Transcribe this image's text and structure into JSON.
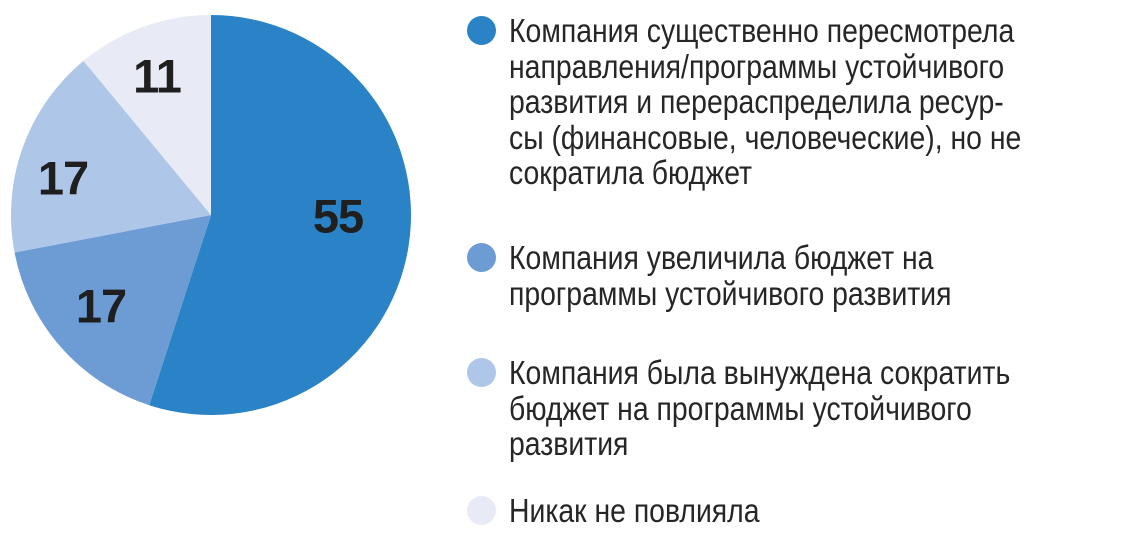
{
  "chart_data": {
    "type": "pie",
    "title": "",
    "unit": "%",
    "direction": "clockwise",
    "start_angle": "12-oclock",
    "legend_position": "right",
    "background": "#FFFFFF",
    "value_label_color": "#1F1F1F",
    "legend_text_color": "#262626",
    "slices": [
      {
        "value": 55,
        "label": "55",
        "color": "#2A83C6",
        "legend": "Компания существенно пересмотрела\nнаправления/программы устойчивого\nразвития и перераспределила ресур-\nсы (финансовые, человеческие), но не\nсократила бюджет"
      },
      {
        "value": 17,
        "label": "17",
        "color": "#6D9CD4",
        "legend": "Компания увеличила бюджет на\nпрограммы устойчивого развития"
      },
      {
        "value": 17,
        "label": "17",
        "color": "#AEC6E8",
        "legend": "Компания была вынуждена сократить\nбюджет на программы устойчивого\nразвития"
      },
      {
        "value": 11,
        "label": "11",
        "color": "#E8EBF5",
        "legend": "Никак не повлияла"
      }
    ]
  }
}
